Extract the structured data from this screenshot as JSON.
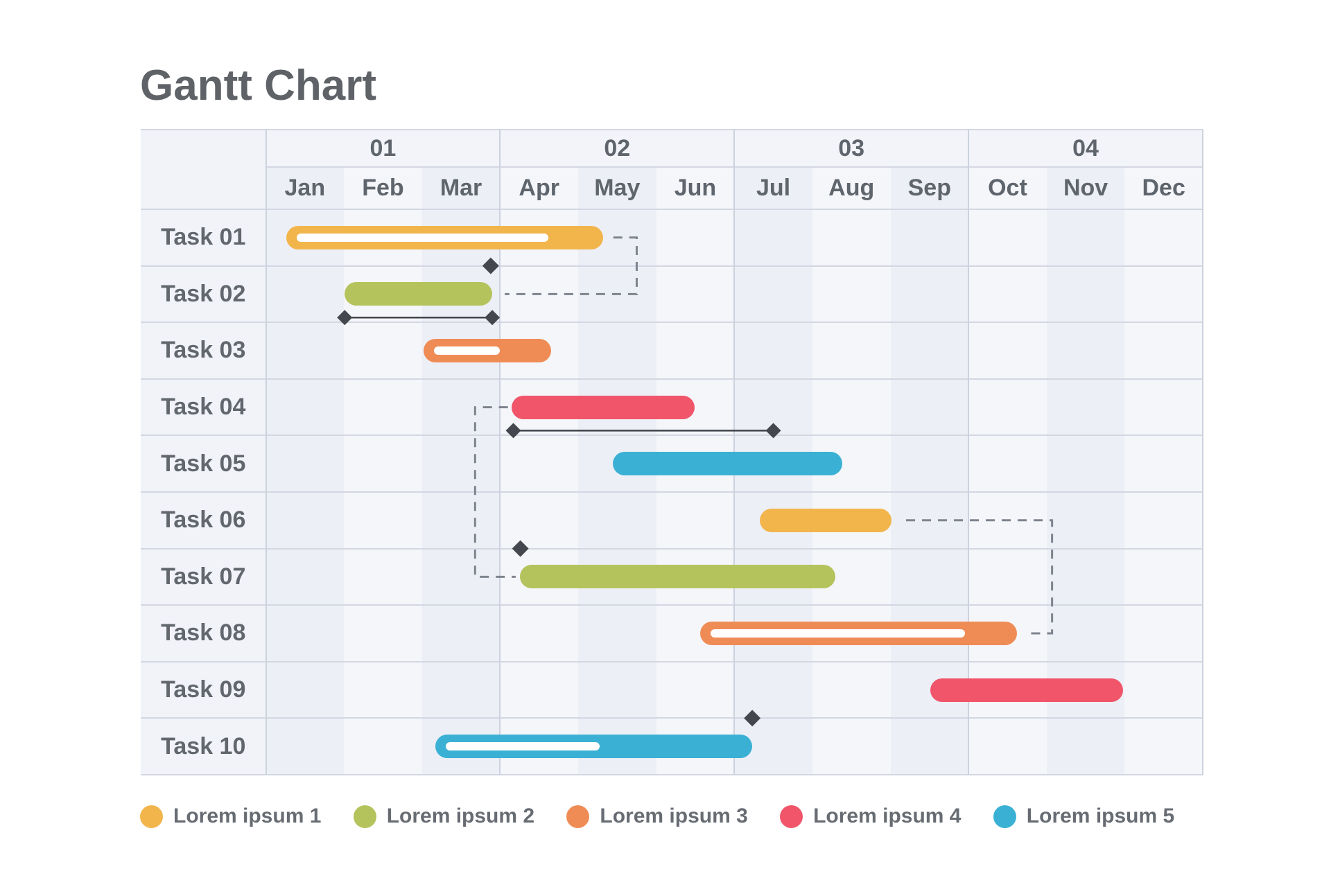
{
  "title": "Gantt Chart",
  "series_colors": {
    "yellow": "#F2B54C",
    "olive": "#B5C35D",
    "orange": "#EF8C55",
    "red": "#F0556A",
    "cyan": "#3AB1D4"
  },
  "legend": [
    {
      "label": "Lorem ipsum 1",
      "color": "yellow"
    },
    {
      "label": "Lorem ipsum 2",
      "color": "olive"
    },
    {
      "label": "Lorem ipsum 3",
      "color": "orange"
    },
    {
      "label": "Lorem ipsum 4",
      "color": "red"
    },
    {
      "label": "Lorem ipsum 5",
      "color": "cyan"
    }
  ],
  "chart_data": {
    "type": "gantt",
    "quarters": [
      "01",
      "02",
      "03",
      "04"
    ],
    "months": [
      "Jan",
      "Feb",
      "Mar",
      "Apr",
      "May",
      "Jun",
      "Jul",
      "Aug",
      "Sep",
      "Oct",
      "Nov",
      "Dec"
    ],
    "tasks": [
      "Task 01",
      "Task 02",
      "Task 03",
      "Task 04",
      "Task 05",
      "Task 06",
      "Task 07",
      "Task 08",
      "Task 09",
      "Task 10"
    ],
    "bars": [
      {
        "task": "Task 01",
        "row": 0,
        "start_month": 0.26,
        "end_month": 4.32,
        "color": "yellow",
        "progress": 0.85
      },
      {
        "task": "Task 02",
        "row": 1,
        "start_month": 1.01,
        "end_month": 2.9,
        "color": "olive",
        "progress": null
      },
      {
        "task": "Task 03",
        "row": 2,
        "start_month": 2.02,
        "end_month": 3.65,
        "color": "orange",
        "progress": 0.62
      },
      {
        "task": "Task 04",
        "row": 3,
        "start_month": 3.15,
        "end_month": 5.49,
        "color": "red",
        "progress": null
      },
      {
        "task": "Task 05",
        "row": 4,
        "start_month": 4.44,
        "end_month": 7.38,
        "color": "cyan",
        "progress": null
      },
      {
        "task": "Task 06",
        "row": 5,
        "start_month": 6.33,
        "end_month": 8.01,
        "color": "yellow",
        "progress": null
      },
      {
        "task": "Task 07",
        "row": 6,
        "start_month": 3.25,
        "end_month": 7.29,
        "color": "olive",
        "progress": null
      },
      {
        "task": "Task 08",
        "row": 7,
        "start_month": 5.56,
        "end_month": 9.62,
        "color": "orange",
        "progress": 0.86
      },
      {
        "task": "Task 09",
        "row": 8,
        "start_month": 8.51,
        "end_month": 10.98,
        "color": "red",
        "progress": null
      },
      {
        "task": "Task 10",
        "row": 9,
        "start_month": 2.17,
        "end_month": 6.23,
        "color": "cyan",
        "progress": 0.52
      }
    ],
    "milestones": [
      {
        "month": 2.88,
        "after_row": 0
      },
      {
        "month": 3.26,
        "after_row": 5
      },
      {
        "month": 6.23,
        "after_row": 8
      }
    ],
    "range_lines": [
      {
        "start_month": 1.01,
        "end_month": 2.9,
        "below_row": 1
      },
      {
        "start_month": 3.17,
        "end_month": 6.5,
        "below_row": 3
      }
    ],
    "connectors": [
      {
        "from": "Task 01",
        "to": "Task 02",
        "points_mr": [
          [
            4.45,
            0.5
          ],
          [
            4.75,
            0.5
          ],
          [
            4.75,
            1.5
          ],
          [
            3.06,
            1.5
          ]
        ]
      },
      {
        "from": "Task 04",
        "to": "Task 07",
        "points_mr": [
          [
            3.1,
            3.5
          ],
          [
            2.68,
            3.5
          ],
          [
            2.68,
            6.5
          ],
          [
            3.2,
            6.5
          ]
        ]
      },
      {
        "from": "Task 06",
        "to": "Task 08",
        "points_mr": [
          [
            8.2,
            5.5
          ],
          [
            10.07,
            5.5
          ],
          [
            10.07,
            7.5
          ],
          [
            9.78,
            7.5
          ]
        ]
      }
    ],
    "grid": true,
    "legend_position": "bottom"
  }
}
